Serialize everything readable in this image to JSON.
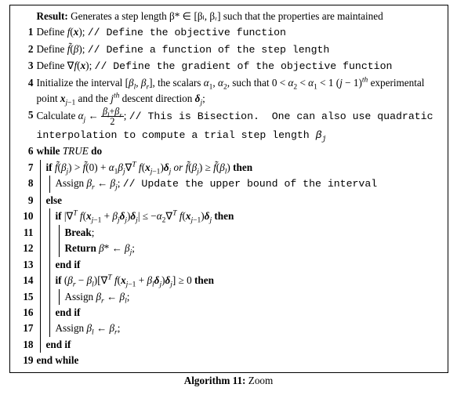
{
  "algorithm": {
    "caption_label": "Algorithm 11:",
    "caption_title": "Zoom",
    "box_border_color": "#000000",
    "background_color": "#ffffff",
    "font_family_body": "Times New Roman",
    "font_family_mono": "Courier New",
    "font_size_pt": 10,
    "result": {
      "label": "Result:",
      "text": "Generates a step length β* ∈ [βₗ, βᵣ] such that the properties are maintained"
    },
    "lines": [
      {
        "n": "1",
        "indent": 0,
        "bars": [],
        "kind": "stmt",
        "html": "Define <span class='it'>f</span>(<span class='bi'>x</span>); <span class='tt'>// Define the objective function</span>"
      },
      {
        "n": "2",
        "indent": 0,
        "bars": [],
        "kind": "stmt",
        "html": "Define <span class='it'>f̃</span>(<span class='it'>β</span>); <span class='tt'>// Define a function of the step length</span>"
      },
      {
        "n": "3",
        "indent": 0,
        "bars": [],
        "kind": "stmt",
        "html": "Define ∇<span class='it'>f</span>(<span class='bi'>x</span>); <span class='tt'>// Define the gradient of the objective function</span>"
      },
      {
        "n": "4",
        "indent": 0,
        "bars": [],
        "kind": "stmt",
        "html": "Initialize the interval [<span class='it'>β<span class='sub'>l</span></span>, <span class='it'>β<span class='sub'>r</span></span>], the scalars <span class='it'>α</span><span class='sub'>1</span>, <span class='it'>α</span><span class='sub'>2</span>, such that 0 &lt; <span class='it'>α</span><span class='sub'>2</span> &lt; <span class='it'>α</span><span class='sub'>1</span> &lt; 1 (<span class='it'>j</span> − 1)<span class='it'><span class='sup'>th</span></span> experimental point <span class='bi'>x</span><span class='sub'><span class='it'>j</span>−1</span> and the <span class='it'>j<span class='sup'>th</span></span> descent direction <span class='bi'>δ</span><span class='sub'><span class='it'>j</span></span>;"
      },
      {
        "n": "5",
        "indent": 0,
        "bars": [],
        "kind": "stmt",
        "html": "Calculate <span class='it'>α<span class='sub'>j</span></span> ← <span class='frac'><span class='fn'><span class='it'>β<span class='sub'>l</span></span>+<span class='it'>β<span class='sub'>r</span></span></span><span class='fd'>2</span></span>; <span class='tt'>// This is Bisection.&nbsp;&nbsp;One can also use quadratic interpolation to compute a trial step length <span class='it'>β<span class='sub'>j</span></span></span>"
      },
      {
        "n": "6",
        "indent": 0,
        "bars": [],
        "kind": "while",
        "html": "<b>while</b> <span class='it'>TRUE</span> <b>do</b>"
      },
      {
        "n": "7",
        "indent": 1,
        "bars": [
          1
        ],
        "kind": "if",
        "html": "<b>if</b> <span class='it'>f̃</span>(<span class='it'>β<span class='sub'>j</span></span>) &gt; <span class='it'>f̃</span>(0) + <span class='it'>α</span><span class='sub'>1</span><span class='it'>β<span class='sub'>j</span></span>∇<span class='sup'><span class='it'>T</span></span> <span class='it'>f</span>(<span class='bi'>x</span><span class='sub'><span class='it'>j</span>−1</span>)<span class='bi'>δ</span><span class='sub'><span class='it'>j</span></span> <span class='it'>or</span> <span class='it'>f̃</span>(<span class='it'>β<span class='sub'>j</span></span>) ≥ <span class='it'>f̃</span>(<span class='it'>β<span class='sub'>l</span></span>) <b>then</b>"
      },
      {
        "n": "8",
        "indent": 2,
        "bars": [
          1,
          2
        ],
        "kind": "stmt",
        "html": "Assign <span class='it'>β<span class='sub'>r</span></span> ← <span class='it'>β<span class='sub'>j</span></span>; <span class='tt'>// Update the upper bound of the interval</span>"
      },
      {
        "n": "9",
        "indent": 1,
        "bars": [
          1
        ],
        "kind": "else",
        "html": "<b>else</b>"
      },
      {
        "n": "10",
        "indent": 2,
        "bars": [
          1,
          2
        ],
        "kind": "if",
        "html": "<b>if</b> |∇<span class='sup'><span class='it'>T</span></span> <span class='it'>f</span>(<span class='bi'>x</span><span class='sub'><span class='it'>j</span>−1</span> + <span class='it'>β<span class='sub'>j</span></span><span class='bi'>δ</span><span class='sub'><span class='it'>j</span></span>)<span class='bi'>δ</span><span class='sub'><span class='it'>j</span></span>| ≤ −<span class='it'>α</span><span class='sub'>2</span>∇<span class='sup'><span class='it'>T</span></span> <span class='it'>f</span>(<span class='bi'>x</span><span class='sub'><span class='it'>j</span>−1</span>)<span class='bi'>δ</span><span class='sub'><span class='it'>j</span></span> <b>then</b>"
      },
      {
        "n": "11",
        "indent": 3,
        "bars": [
          1,
          2,
          3
        ],
        "kind": "stmt",
        "html": "<b>Break</b>;"
      },
      {
        "n": "12",
        "indent": 3,
        "bars": [
          1,
          2,
          3
        ],
        "kind": "stmt",
        "html": "<b>Return</b> <span class='it'>β</span>* ← <span class='it'>β<span class='sub'>j</span></span>;"
      },
      {
        "n": "13",
        "indent": 2,
        "bars": [
          1,
          2
        ],
        "kind": "endif",
        "html": "<b>end if</b>"
      },
      {
        "n": "14",
        "indent": 2,
        "bars": [
          1,
          2
        ],
        "kind": "if",
        "html": "<b>if</b> (<span class='it'>β<span class='sub'>r</span></span> − <span class='it'>β<span class='sub'>l</span></span>)[∇<span class='sup'><span class='it'>T</span></span> <span class='it'>f</span>(<span class='bi'>x</span><span class='sub'><span class='it'>j</span>−1</span> + <span class='it'>β<span class='sub'>l</span></span><span class='bi'>δ</span><span class='sub'><span class='it'>j</span></span>)<span class='bi'>δ</span><span class='sub'><span class='it'>j</span></span>] ≥ 0 <b>then</b>"
      },
      {
        "n": "15",
        "indent": 3,
        "bars": [
          1,
          2,
          3
        ],
        "kind": "stmt",
        "html": "Assign <span class='it'>β<span class='sub'>r</span></span> ← <span class='it'>β<span class='sub'>l</span></span>;"
      },
      {
        "n": "16",
        "indent": 2,
        "bars": [
          1,
          2
        ],
        "kind": "endif",
        "html": "<b>end if</b>"
      },
      {
        "n": "17",
        "indent": 2,
        "bars": [
          1,
          2
        ],
        "kind": "stmt",
        "html": "Assign <span class='it'>β<span class='sub'>l</span></span> ← <span class='it'>β<span class='sub'>r</span></span>;"
      },
      {
        "n": "18",
        "indent": 1,
        "bars": [
          1
        ],
        "kind": "endif",
        "html": "<b>end if</b>"
      },
      {
        "n": "19",
        "indent": 0,
        "bars": [],
        "kind": "endwhile",
        "html": "<b>end while</b>"
      }
    ]
  }
}
